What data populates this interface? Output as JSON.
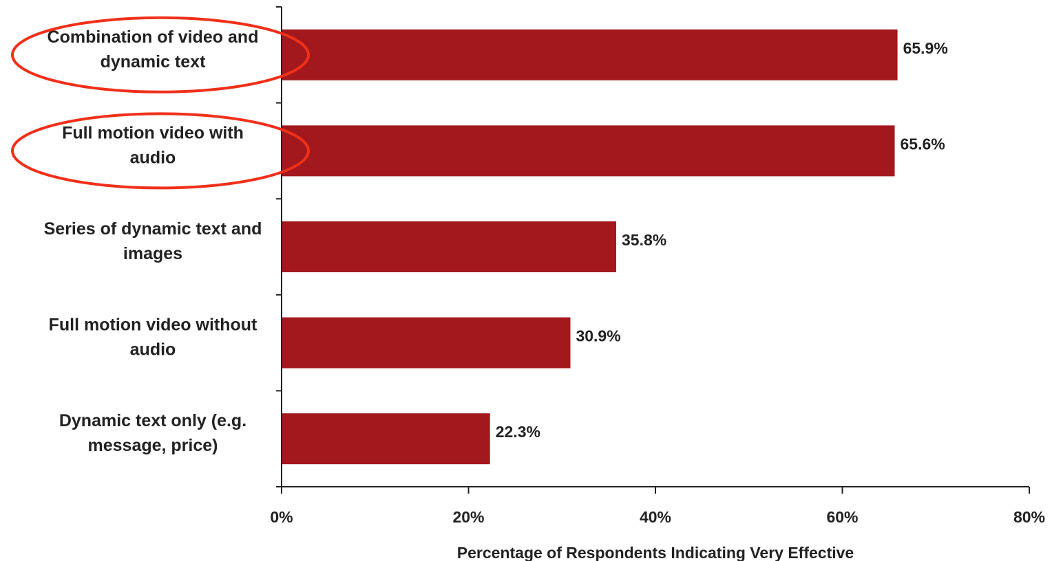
{
  "chart_data": {
    "type": "bar",
    "orientation": "horizontal",
    "categories": [
      "Combination of video and dynamic text",
      "Full motion video with audio",
      "Series of dynamic text and images",
      "Full motion video without audio",
      "Dynamic text only (e.g. message, price)"
    ],
    "category_lines": [
      [
        "Combination of video and",
        "dynamic text"
      ],
      [
        "Full motion video with",
        "audio"
      ],
      [
        "Series of dynamic text and",
        "images"
      ],
      [
        "Full motion video without",
        "audio"
      ],
      [
        "Dynamic text only (e.g.",
        "message, price)"
      ]
    ],
    "values": [
      65.9,
      65.6,
      35.8,
      30.9,
      22.3
    ],
    "value_labels": [
      "65.9%",
      "65.6%",
      "35.8%",
      "30.9%",
      "22.3%"
    ],
    "xlabel": "Percentage of Respondents Indicating Very Effective",
    "xlim": [
      0,
      80
    ],
    "xticks": [
      0,
      20,
      40,
      60,
      80
    ],
    "xtick_labels": [
      "0%",
      "20%",
      "40%",
      "60%",
      "80%"
    ],
    "grid": false,
    "bar_color": "#a3181d",
    "highlighted_categories": [
      0,
      1
    ],
    "highlight_color": "#f0301a"
  }
}
